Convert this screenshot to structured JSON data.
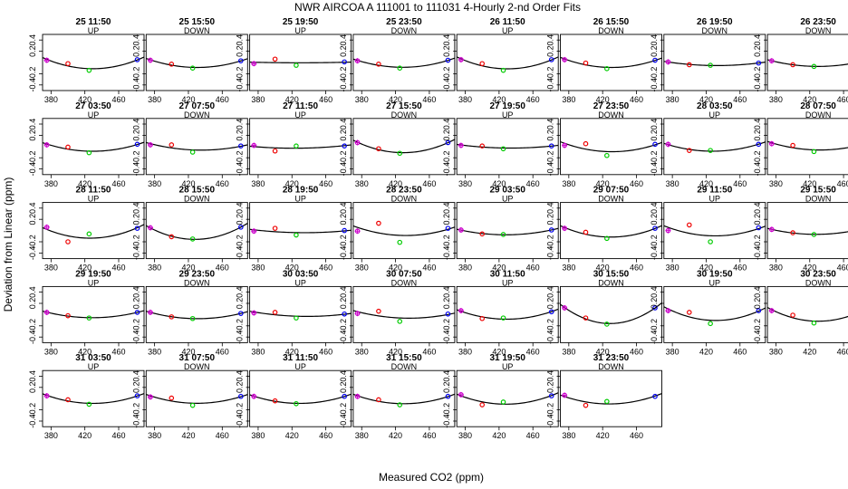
{
  "chart_data": {
    "type": "scatter",
    "title": "NWR   AIRCOA A   111001 to 111031   4-Hourly 2-nd Order Fits",
    "xlabel": "Measured CO2 (ppm)",
    "ylabel": "Deviation from Linear (ppm)",
    "xlim": [
      370,
      490
    ],
    "ylim": [
      -0.5,
      0.5
    ],
    "xticks": [
      "380",
      "420",
      "460"
    ],
    "yticks": [
      "-0.4",
      "-0.2",
      "0.2",
      "0.4"
    ],
    "standards_x": [
      375,
      400,
      425,
      482
    ],
    "marker_colors": [
      "#cc00cc",
      "#ee0000",
      "#00cc00",
      "#0000ee"
    ],
    "curve_color": "#000000",
    "grid": false,
    "panels": [
      {
        "label": "25 11:50",
        "direction": "UP",
        "points": [
          0.04,
          -0.02,
          -0.14,
          0.05
        ]
      },
      {
        "label": "25 15:50",
        "direction": "DOWN",
        "points": [
          0.04,
          -0.03,
          -0.1,
          0.03
        ]
      },
      {
        "label": "25 19:50",
        "direction": "UP",
        "points": [
          -0.02,
          0.06,
          -0.05,
          0.01
        ]
      },
      {
        "label": "25 23:50",
        "direction": "DOWN",
        "points": [
          0.03,
          -0.03,
          -0.1,
          0.04
        ]
      },
      {
        "label": "26 11:50",
        "direction": "UP",
        "points": [
          0.05,
          -0.02,
          -0.14,
          0.05
        ]
      },
      {
        "label": "26 15:50",
        "direction": "DOWN",
        "points": [
          0.05,
          -0.01,
          -0.11,
          0.04
        ]
      },
      {
        "label": "26 19:50",
        "direction": "DOWN",
        "points": [
          0.01,
          -0.04,
          -0.05,
          -0.01
        ]
      },
      {
        "label": "26 23:50",
        "direction": "DOWN",
        "points": [
          0.03,
          -0.04,
          -0.07,
          0.02
        ]
      },
      {
        "label": "27 03:50",
        "direction": "UP",
        "points": [
          0.03,
          -0.01,
          -0.11,
          0.04
        ]
      },
      {
        "label": "27 07:50",
        "direction": "DOWN",
        "points": [
          0.03,
          0.03,
          -0.1,
          0.01
        ]
      },
      {
        "label": "27 11:50",
        "direction": "UP",
        "points": [
          0.02,
          -0.08,
          0.01,
          0.01
        ]
      },
      {
        "label": "27 15:50",
        "direction": "DOWN",
        "points": [
          0.07,
          -0.04,
          -0.12,
          0.07
        ]
      },
      {
        "label": "27 19:50",
        "direction": "UP",
        "points": [
          0.02,
          0.01,
          -0.04,
          0.01
        ]
      },
      {
        "label": "27 23:50",
        "direction": "DOWN",
        "points": [
          0.02,
          0.05,
          -0.16,
          0.04
        ]
      },
      {
        "label": "28 03:50",
        "direction": "UP",
        "points": [
          0.04,
          -0.07,
          -0.07,
          0.04
        ]
      },
      {
        "label": "28 07:50",
        "direction": "DOWN",
        "points": [
          0.05,
          0.02,
          -0.09,
          0.04
        ]
      },
      {
        "label": "28 11:50",
        "direction": "UP",
        "points": [
          0.06,
          -0.2,
          -0.06,
          0.04
        ]
      },
      {
        "label": "28 15:50",
        "direction": "DOWN",
        "points": [
          0.05,
          -0.11,
          -0.15,
          0.06
        ]
      },
      {
        "label": "28 19:50",
        "direction": "UP",
        "points": [
          -0.01,
          0.04,
          -0.08,
          0.0
        ]
      },
      {
        "label": "28 23:50",
        "direction": "DOWN",
        "points": [
          -0.01,
          0.13,
          -0.21,
          0.04
        ]
      },
      {
        "label": "29 03:50",
        "direction": "UP",
        "points": [
          0.01,
          -0.06,
          -0.07,
          0.01
        ]
      },
      {
        "label": "29 07:50",
        "direction": "DOWN",
        "points": [
          0.04,
          -0.03,
          -0.14,
          0.04
        ]
      },
      {
        "label": "29 11:50",
        "direction": "UP",
        "points": [
          0.0,
          0.1,
          -0.2,
          0.05
        ]
      },
      {
        "label": "29 15:50",
        "direction": "DOWN",
        "points": [
          0.02,
          -0.04,
          -0.07,
          0.03
        ]
      },
      {
        "label": "29 19:50",
        "direction": "UP",
        "points": [
          0.04,
          -0.02,
          -0.06,
          0.04
        ]
      },
      {
        "label": "29 23:50",
        "direction": "DOWN",
        "points": [
          0.04,
          -0.04,
          -0.07,
          0.02
        ]
      },
      {
        "label": "30 03:50",
        "direction": "UP",
        "points": [
          0.03,
          0.04,
          -0.06,
          0.01
        ]
      },
      {
        "label": "30 07:50",
        "direction": "DOWN",
        "points": [
          0.02,
          0.06,
          -0.12,
          0.01
        ]
      },
      {
        "label": "30 11:50",
        "direction": "UP",
        "points": [
          0.07,
          -0.07,
          -0.06,
          0.05
        ]
      },
      {
        "label": "30 15:50",
        "direction": "DOWN",
        "points": [
          0.12,
          -0.06,
          -0.17,
          0.12
        ]
      },
      {
        "label": "30 19:50",
        "direction": "UP",
        "points": [
          0.07,
          0.04,
          -0.16,
          0.07
        ]
      },
      {
        "label": "30 23:50",
        "direction": "DOWN",
        "points": [
          0.07,
          -0.01,
          -0.15,
          0.07
        ]
      },
      {
        "label": "31 03:50",
        "direction": "UP",
        "points": [
          0.05,
          -0.02,
          -0.1,
          0.05
        ]
      },
      {
        "label": "31 07:50",
        "direction": "DOWN",
        "points": [
          0.03,
          0.01,
          -0.12,
          0.04
        ]
      },
      {
        "label": "31 11:50",
        "direction": "UP",
        "points": [
          0.04,
          -0.04,
          -0.09,
          0.04
        ]
      },
      {
        "label": "31 15:50",
        "direction": "DOWN",
        "points": [
          0.04,
          -0.02,
          -0.11,
          0.04
        ]
      },
      {
        "label": "31 19:50",
        "direction": "UP",
        "points": [
          0.07,
          -0.11,
          -0.06,
          0.05
        ]
      },
      {
        "label": "31 23:50",
        "direction": "DOWN",
        "points": [
          0.06,
          -0.12,
          -0.05,
          0.04
        ]
      }
    ]
  }
}
